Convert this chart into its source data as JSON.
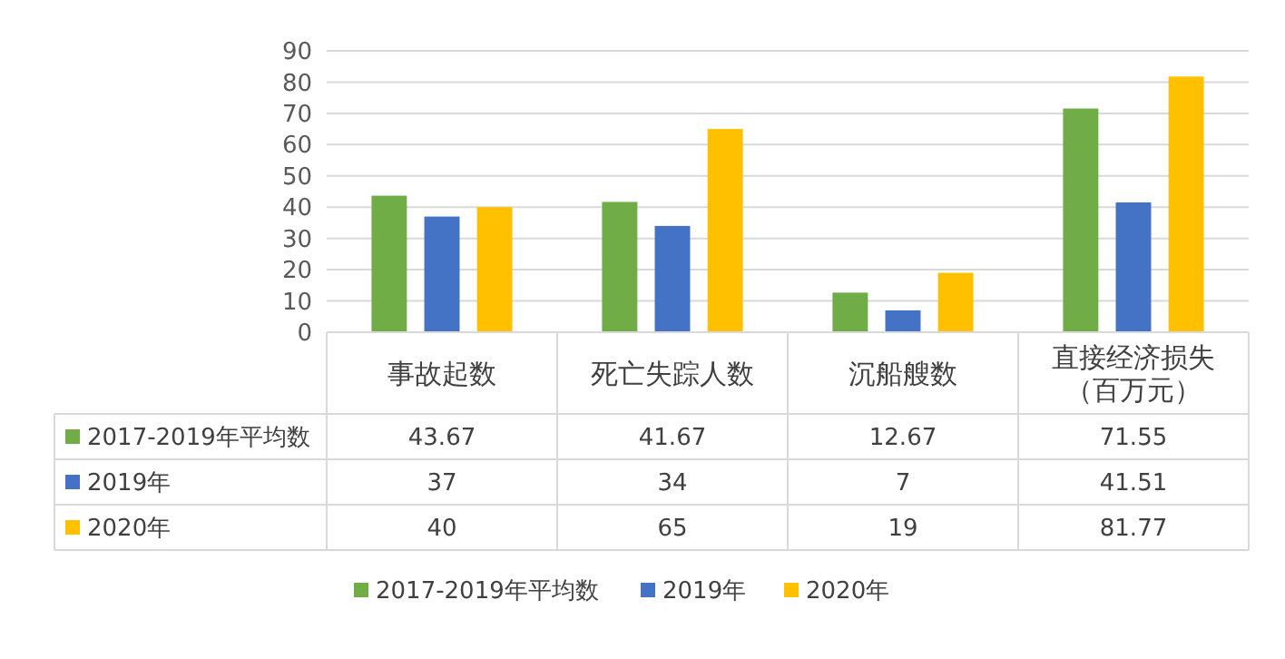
{
  "chart_data": {
    "type": "bar",
    "categories": [
      "事故起数",
      "死亡失踪人数",
      "沉船艘数",
      "直接经济损失（百万元）"
    ],
    "series": [
      {
        "name": "2017-2019年平均数",
        "color": "#70ad47",
        "values": [
          43.67,
          41.67,
          12.67,
          71.55
        ]
      },
      {
        "name": "2019年",
        "color": "#4472c4",
        "values": [
          37,
          34,
          7,
          41.51
        ]
      },
      {
        "name": "2020年",
        "color": "#ffc000",
        "values": [
          40,
          65,
          19,
          81.77
        ]
      }
    ],
    "ylim": [
      0,
      90
    ],
    "yticks": [
      0,
      10,
      20,
      30,
      40,
      50,
      60,
      70,
      80,
      90
    ],
    "grid": "y",
    "legend": "bottom",
    "data_labels": true
  }
}
